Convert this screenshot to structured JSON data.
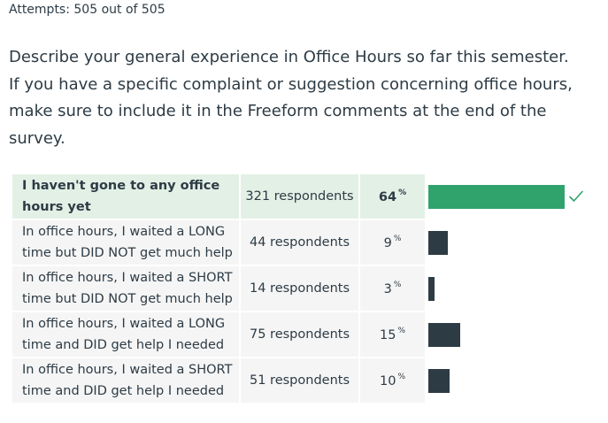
{
  "attempts_text": "Attempts: 505 out of 505",
  "question_lines": [
    "Describe your general experience in Office Hours so far this semester.",
    "If you have a specific complaint or suggestion concerning office hours,",
    "make sure to include it in the Freeform comments at the end of the",
    "survey."
  ],
  "answers": [
    {
      "label": "I haven't gone to any office hours yet",
      "respondents": "321 respondents",
      "percent_value": "64",
      "percent_sign": "%",
      "share": 0.64,
      "correct": true
    },
    {
      "label": "In office hours, I waited a LONG time but DID NOT get much help",
      "respondents": "44 respondents",
      "percent_value": "9",
      "percent_sign": "%",
      "share": 0.09,
      "correct": false
    },
    {
      "label": "In office hours, I waited a SHORT time but DID NOT get much help",
      "respondents": "14 respondents",
      "percent_value": "3",
      "percent_sign": "%",
      "share": 0.03,
      "correct": false
    },
    {
      "label": "In office hours, I waited a LONG time and DID get help I needed",
      "respondents": "75 respondents",
      "percent_value": "15",
      "percent_sign": "%",
      "share": 0.15,
      "correct": false
    },
    {
      "label": "In office hours, I waited a SHORT time and DID get help I needed",
      "respondents": "51 respondents",
      "percent_value": "10",
      "percent_sign": "%",
      "share": 0.1,
      "correct": false
    }
  ],
  "colors": {
    "correct_bar": "#2fa36b",
    "bar": "#2d3b45",
    "correct_row_bg": "#e3f0e6",
    "row_bg": "#f5f5f5",
    "check": "#2fa36b"
  },
  "icons": {
    "correct_marker": "check-icon"
  }
}
